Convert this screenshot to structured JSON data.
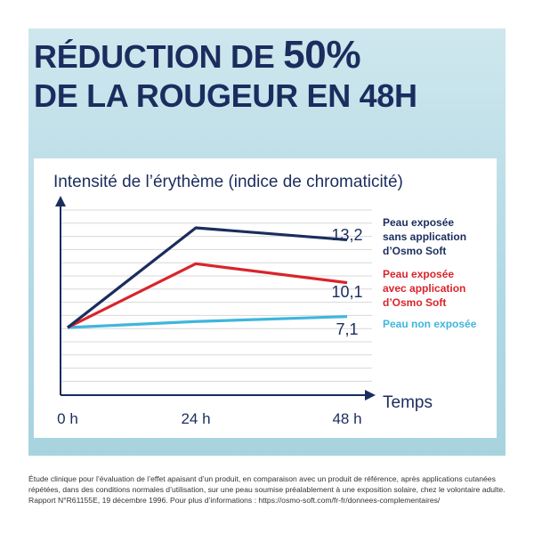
{
  "headline": {
    "prefix": "RÉDUCTION DE ",
    "percent": "50%",
    "line2": "DE LA ROUGEUR EN 48H"
  },
  "chart_data": {
    "type": "line",
    "title": "Intensité de l’érythème (indice de chromaticité)",
    "xlabel": "Temps",
    "ylabel": "Intensité de l’érythème (indice de chromaticité)",
    "categories": [
      "0 h",
      "24 h",
      "48 h"
    ],
    "grid": true,
    "series": [
      {
        "name": "Peau exposée sans application d’Osmo Soft",
        "name_lines": [
          "Peau exposée",
          "sans application",
          "d’Osmo Soft"
        ],
        "color": "#1b2d5e",
        "values": [
          null,
          null,
          13.2
        ],
        "shape": [
          0.0,
          1.0,
          0.88
        ],
        "label": "13,2"
      },
      {
        "name": "Peau exposée avec application d’Osmo Soft",
        "name_lines": [
          "Peau exposée",
          "avec application",
          "d’Osmo Soft"
        ],
        "color": "#d9242b",
        "values": [
          null,
          null,
          10.1
        ],
        "shape": [
          0.0,
          0.64,
          0.45
        ],
        "label": "10,1"
      },
      {
        "name": "Peau non exposée",
        "name_lines": [
          "Peau non exposée"
        ],
        "color": "#3fb6dc",
        "values": [
          null,
          null,
          7.1
        ],
        "shape": [
          0.0,
          0.06,
          0.11
        ],
        "label": "7,1"
      }
    ]
  },
  "footnote": {
    "text": "Étude clinique pour l’évaluation de l’effet apaisant d’un produit, en comparaison avec un produit de référence, après applications cutanées répétées, dans des conditions normales d’utilisation, sur une peau soumise préalablement à une exposition solaire, chez le volontaire adulte. Rapport N°R61155E, 19 décembre 1996. Pour plus d’informations : https://osmo-soft.com/fr-fr/donnees-complementaires/"
  }
}
